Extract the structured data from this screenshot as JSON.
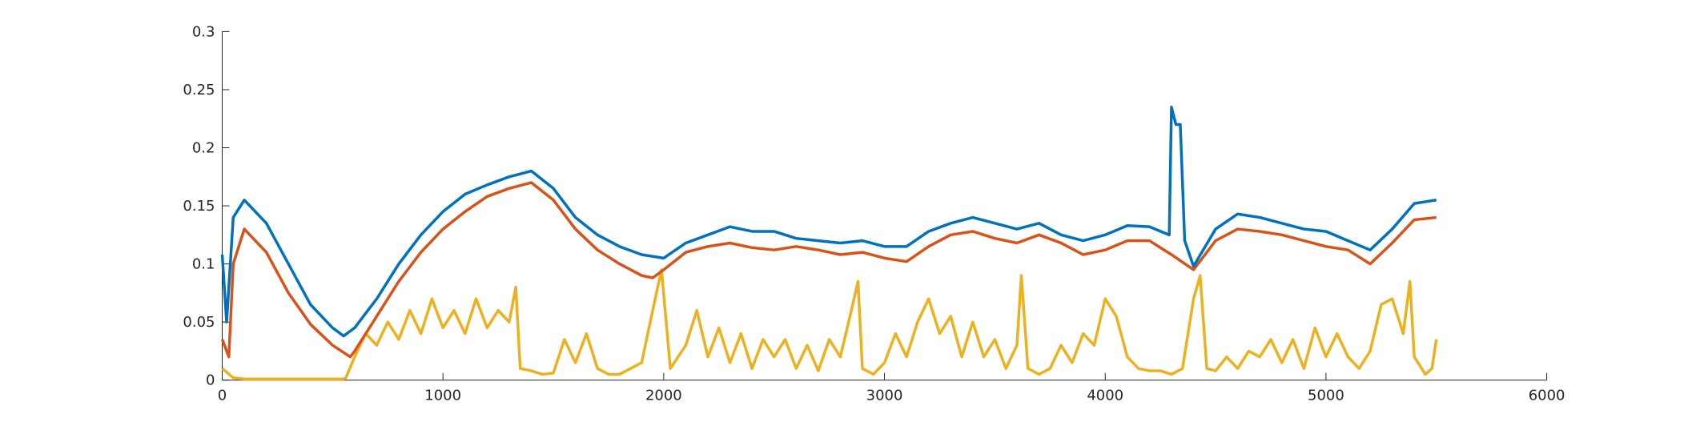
{
  "chart_data": {
    "type": "line",
    "xlim": [
      0,
      6000
    ],
    "xticks": [
      0,
      1000,
      2000,
      3000,
      4000,
      5000,
      6000
    ],
    "ylim": [
      0,
      0.3
    ],
    "yticks": [
      0,
      0.05,
      0.1,
      0.15,
      0.2,
      0.25,
      0.3
    ],
    "series": [
      {
        "color": "#edb120",
        "x": [
          0,
          50,
          100,
          550,
          560,
          600,
          650,
          700,
          750,
          800,
          850,
          900,
          950,
          1000,
          1050,
          1100,
          1150,
          1200,
          1250,
          1300,
          1330,
          1350,
          1400,
          1450,
          1500,
          1550,
          1600,
          1650,
          1700,
          1750,
          1800,
          1850,
          1900,
          1950,
          1990,
          2030,
          2100,
          2150,
          2200,
          2250,
          2300,
          2350,
          2400,
          2450,
          2500,
          2550,
          2600,
          2650,
          2700,
          2750,
          2800,
          2850,
          2880,
          2900,
          2950,
          3000,
          3050,
          3100,
          3150,
          3200,
          3250,
          3300,
          3350,
          3400,
          3450,
          3500,
          3550,
          3600,
          3620,
          3650,
          3700,
          3750,
          3800,
          3850,
          3900,
          3950,
          4000,
          4050,
          4100,
          4150,
          4200,
          4250,
          4300,
          4350,
          4400,
          4430,
          4460,
          4500,
          4550,
          4600,
          4650,
          4700,
          4750,
          4800,
          4850,
          4900,
          4950,
          5000,
          5050,
          5100,
          5150,
          5200,
          5250,
          5300,
          5350,
          5380,
          5400,
          5450,
          5480,
          5500
        ],
        "values": [
          0.01,
          0.002,
          0.001,
          0.001,
          0.002,
          0.02,
          0.04,
          0.03,
          0.05,
          0.035,
          0.06,
          0.04,
          0.07,
          0.045,
          0.06,
          0.04,
          0.07,
          0.045,
          0.06,
          0.05,
          0.08,
          0.01,
          0.008,
          0.005,
          0.006,
          0.035,
          0.015,
          0.04,
          0.01,
          0.005,
          0.005,
          0.01,
          0.015,
          0.06,
          0.095,
          0.01,
          0.03,
          0.06,
          0.02,
          0.045,
          0.015,
          0.04,
          0.01,
          0.035,
          0.02,
          0.035,
          0.01,
          0.03,
          0.008,
          0.035,
          0.02,
          0.06,
          0.085,
          0.01,
          0.005,
          0.015,
          0.04,
          0.02,
          0.05,
          0.07,
          0.04,
          0.055,
          0.02,
          0.05,
          0.02,
          0.035,
          0.01,
          0.03,
          0.09,
          0.01,
          0.005,
          0.01,
          0.03,
          0.015,
          0.04,
          0.03,
          0.07,
          0.055,
          0.02,
          0.01,
          0.008,
          0.008,
          0.005,
          0.01,
          0.07,
          0.09,
          0.01,
          0.008,
          0.02,
          0.01,
          0.025,
          0.02,
          0.035,
          0.015,
          0.035,
          0.01,
          0.045,
          0.02,
          0.04,
          0.02,
          0.01,
          0.025,
          0.065,
          0.07,
          0.04,
          0.085,
          0.02,
          0.005,
          0.01,
          0.035
        ]
      },
      {
        "color": "#d95319",
        "x": [
          0,
          30,
          50,
          100,
          200,
          300,
          400,
          500,
          580,
          600,
          700,
          800,
          900,
          1000,
          1100,
          1200,
          1300,
          1400,
          1500,
          1600,
          1700,
          1800,
          1900,
          1950,
          2000,
          2100,
          2200,
          2300,
          2400,
          2500,
          2600,
          2700,
          2800,
          2900,
          3000,
          3100,
          3200,
          3300,
          3400,
          3500,
          3600,
          3700,
          3800,
          3900,
          4000,
          4100,
          4200,
          4300,
          4400,
          4500,
          4600,
          4700,
          4800,
          4900,
          5000,
          5100,
          5200,
          5300,
          5400,
          5500
        ],
        "values": [
          0.035,
          0.02,
          0.1,
          0.13,
          0.11,
          0.075,
          0.048,
          0.03,
          0.02,
          0.025,
          0.055,
          0.085,
          0.11,
          0.13,
          0.145,
          0.158,
          0.165,
          0.17,
          0.155,
          0.13,
          0.112,
          0.1,
          0.09,
          0.088,
          0.095,
          0.11,
          0.115,
          0.118,
          0.114,
          0.112,
          0.115,
          0.112,
          0.108,
          0.11,
          0.105,
          0.102,
          0.115,
          0.125,
          0.128,
          0.122,
          0.118,
          0.125,
          0.118,
          0.108,
          0.112,
          0.12,
          0.12,
          0.108,
          0.095,
          0.12,
          0.13,
          0.128,
          0.125,
          0.12,
          0.115,
          0.112,
          0.1,
          0.118,
          0.138,
          0.14
        ]
      },
      {
        "color": "#0072bd",
        "x": [
          0,
          20,
          50,
          100,
          200,
          300,
          400,
          500,
          550,
          600,
          700,
          800,
          900,
          1000,
          1100,
          1200,
          1300,
          1400,
          1500,
          1600,
          1700,
          1800,
          1900,
          2000,
          2100,
          2200,
          2300,
          2400,
          2500,
          2600,
          2700,
          2800,
          2900,
          3000,
          3100,
          3200,
          3300,
          3400,
          3500,
          3600,
          3700,
          3800,
          3900,
          4000,
          4100,
          4200,
          4290,
          4300,
          4320,
          4340,
          4360,
          4400,
          4500,
          4600,
          4700,
          4800,
          4900,
          5000,
          5100,
          5200,
          5300,
          5400,
          5500
        ],
        "values": [
          0.108,
          0.05,
          0.14,
          0.155,
          0.135,
          0.1,
          0.065,
          0.045,
          0.038,
          0.045,
          0.07,
          0.1,
          0.125,
          0.145,
          0.16,
          0.168,
          0.175,
          0.18,
          0.165,
          0.14,
          0.125,
          0.115,
          0.108,
          0.105,
          0.118,
          0.125,
          0.132,
          0.128,
          0.128,
          0.122,
          0.12,
          0.118,
          0.12,
          0.115,
          0.115,
          0.128,
          0.135,
          0.14,
          0.135,
          0.13,
          0.135,
          0.125,
          0.12,
          0.125,
          0.133,
          0.132,
          0.125,
          0.235,
          0.22,
          0.22,
          0.12,
          0.098,
          0.13,
          0.143,
          0.14,
          0.135,
          0.13,
          0.128,
          0.12,
          0.112,
          0.13,
          0.152,
          0.155
        ]
      }
    ]
  }
}
